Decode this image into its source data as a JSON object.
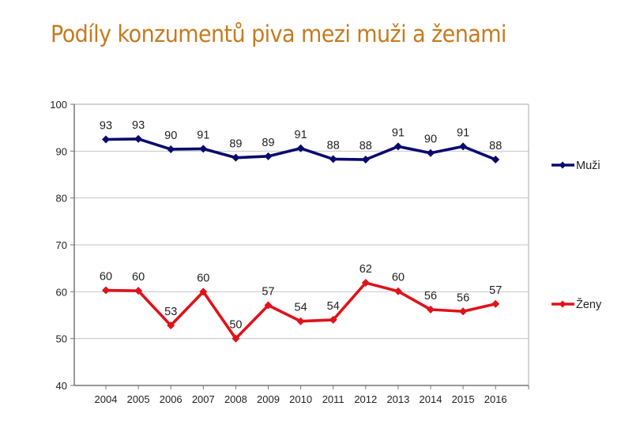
{
  "page": {
    "title": "Podíly konzumentů piva mezi muži a ženami"
  },
  "chart_data": {
    "type": "line",
    "title": "Podíly konzumentů piva mezi muži a ženami",
    "xlabel": "",
    "ylabel": "",
    "x": [
      "2004",
      "2005",
      "2006",
      "2007",
      "2008",
      "2009",
      "2010",
      "2011",
      "2012",
      "2013",
      "2014",
      "2015",
      "2016"
    ],
    "ylim": [
      40,
      100
    ],
    "yticks": [
      40,
      50,
      60,
      70,
      80,
      90,
      100
    ],
    "grid": "horizontal",
    "legend_position": "right",
    "series": [
      {
        "name": "Muži",
        "color": "#0a0a6e",
        "marker": "diamond",
        "values": [
          92.5,
          92.6,
          90.4,
          90.5,
          88.6,
          88.9,
          90.6,
          88.3,
          88.2,
          91.0,
          89.6,
          91.0,
          88.2
        ],
        "labels": [
          "93",
          "93",
          "90",
          "91",
          "89",
          "89",
          "91",
          "88",
          "88",
          "91",
          "90",
          "91",
          "88"
        ]
      },
      {
        "name": "Ženy",
        "color": "#e0121a",
        "marker": "diamond",
        "values": [
          60.3,
          60.2,
          52.8,
          60.0,
          50.0,
          57.1,
          53.7,
          54.0,
          61.9,
          60.1,
          56.2,
          55.8,
          57.4
        ],
        "labels": [
          "60",
          "60",
          "53",
          "60",
          "50",
          "57",
          "54",
          "54",
          "62",
          "60",
          "56",
          "56",
          "57"
        ]
      }
    ]
  }
}
